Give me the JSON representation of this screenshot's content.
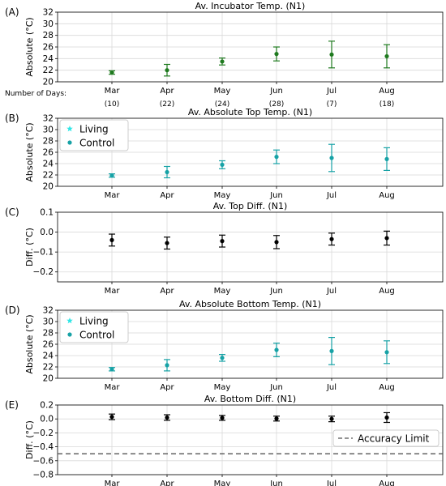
{
  "figure": {
    "days_label": "Number of Days:",
    "days_counts": [
      "(10)",
      "(22)",
      "(24)",
      "(28)",
      "(7)",
      "(18)"
    ]
  },
  "chart_data": [
    {
      "panel_label": "(A)",
      "type": "scatter",
      "title": "Av. Incubator Temp. (N1)",
      "ylabel": "Absolute (°C)",
      "categories": [
        "Mar",
        "Apr",
        "May",
        "Jun",
        "Jul",
        "Aug"
      ],
      "ylim": [
        20,
        32
      ],
      "yticks": [
        20,
        22,
        24,
        26,
        28,
        30,
        32
      ],
      "ytick_labels": [
        "20",
        "22",
        "24",
        "26",
        "28",
        "30",
        "32"
      ],
      "grid": true,
      "series": [
        {
          "name": "",
          "color": "#1f7a1f",
          "marker": "dot",
          "values": [
            21.6,
            22.0,
            23.5,
            24.8,
            24.7,
            24.4
          ],
          "errors": [
            0.3,
            1.0,
            0.6,
            1.2,
            2.3,
            2.0
          ]
        }
      ]
    },
    {
      "panel_label": "(B)",
      "type": "scatter",
      "title": "Av. Absolute Top Temp. (N1)",
      "ylabel": "Absolute (°C)",
      "categories": [
        "Mar",
        "Apr",
        "May",
        "Jun",
        "Jul",
        "Aug"
      ],
      "ylim": [
        20,
        32
      ],
      "yticks": [
        20,
        22,
        24,
        26,
        28,
        30,
        32
      ],
      "ytick_labels": [
        "20",
        "22",
        "24",
        "26",
        "28",
        "30",
        "32"
      ],
      "grid": true,
      "legend": "top-left",
      "series": [
        {
          "name": "Living",
          "color": "#2ee6e6",
          "marker": "star",
          "values": [],
          "errors": []
        },
        {
          "name": "Control",
          "color": "#17a2a6",
          "marker": "dot",
          "values": [
            21.9,
            22.5,
            23.8,
            25.2,
            25.0,
            24.8
          ],
          "errors": [
            0.3,
            1.0,
            0.7,
            1.2,
            2.4,
            2.0
          ]
        }
      ]
    },
    {
      "panel_label": "(C)",
      "type": "scatter",
      "title": "Av. Top Diff. (N1)",
      "ylabel": "Diff. (°C)",
      "categories": [
        "Mar",
        "Apr",
        "May",
        "Jun",
        "Jul",
        "Aug"
      ],
      "ylim": [
        -0.25,
        0.1
      ],
      "yticks": [
        -0.2,
        -0.1,
        0.0,
        0.1
      ],
      "ytick_labels": [
        "−0.2",
        "−0.1",
        "0.0",
        "0.1"
      ],
      "grid": true,
      "series": [
        {
          "name": "",
          "color": "#000000",
          "marker": "dot",
          "values": [
            -0.04,
            -0.055,
            -0.045,
            -0.05,
            -0.035,
            -0.03
          ],
          "errors": [
            0.03,
            0.03,
            0.03,
            0.033,
            0.03,
            0.035
          ]
        }
      ]
    },
    {
      "panel_label": "(D)",
      "type": "scatter",
      "title": "Av. Absolute Bottom Temp. (N1)",
      "ylabel": "Absolute (°C)",
      "categories": [
        "Mar",
        "Apr",
        "May",
        "Jun",
        "Jul",
        "Aug"
      ],
      "ylim": [
        20,
        32
      ],
      "yticks": [
        20,
        22,
        24,
        26,
        28,
        30,
        32
      ],
      "ytick_labels": [
        "20",
        "22",
        "24",
        "26",
        "28",
        "30",
        "32"
      ],
      "grid": true,
      "legend": "top-left",
      "series": [
        {
          "name": "Living",
          "color": "#2ee6e6",
          "marker": "star",
          "values": [],
          "errors": []
        },
        {
          "name": "Control",
          "color": "#17a2a6",
          "marker": "dot",
          "values": [
            21.6,
            22.3,
            23.6,
            25.0,
            24.8,
            24.6
          ],
          "errors": [
            0.3,
            1.0,
            0.6,
            1.2,
            2.4,
            2.0
          ]
        }
      ]
    },
    {
      "panel_label": "(E)",
      "type": "scatter",
      "title": "Av. Bottom Diff. (N1)",
      "ylabel": "Diff. (°C)",
      "categories": [
        "Mar",
        "Apr",
        "May",
        "Jun",
        "Jul",
        "Aug"
      ],
      "ylim": [
        -0.8,
        0.2
      ],
      "yticks": [
        -0.8,
        -0.6,
        -0.4,
        -0.2,
        0.0,
        0.2
      ],
      "ytick_labels": [
        "−0.8",
        "−0.6",
        "−0.4",
        "−0.2",
        "0.0",
        "0.2"
      ],
      "grid": true,
      "legend": "right",
      "reference_line": {
        "name": "Accuracy Limit",
        "value": -0.5,
        "style": "dashed",
        "color": "#555555"
      },
      "series": [
        {
          "name": "",
          "color": "#000000",
          "marker": "dot",
          "values": [
            0.03,
            0.02,
            0.015,
            0.005,
            0.0,
            0.02
          ],
          "errors": [
            0.04,
            0.04,
            0.035,
            0.035,
            0.04,
            0.07
          ]
        }
      ]
    }
  ]
}
